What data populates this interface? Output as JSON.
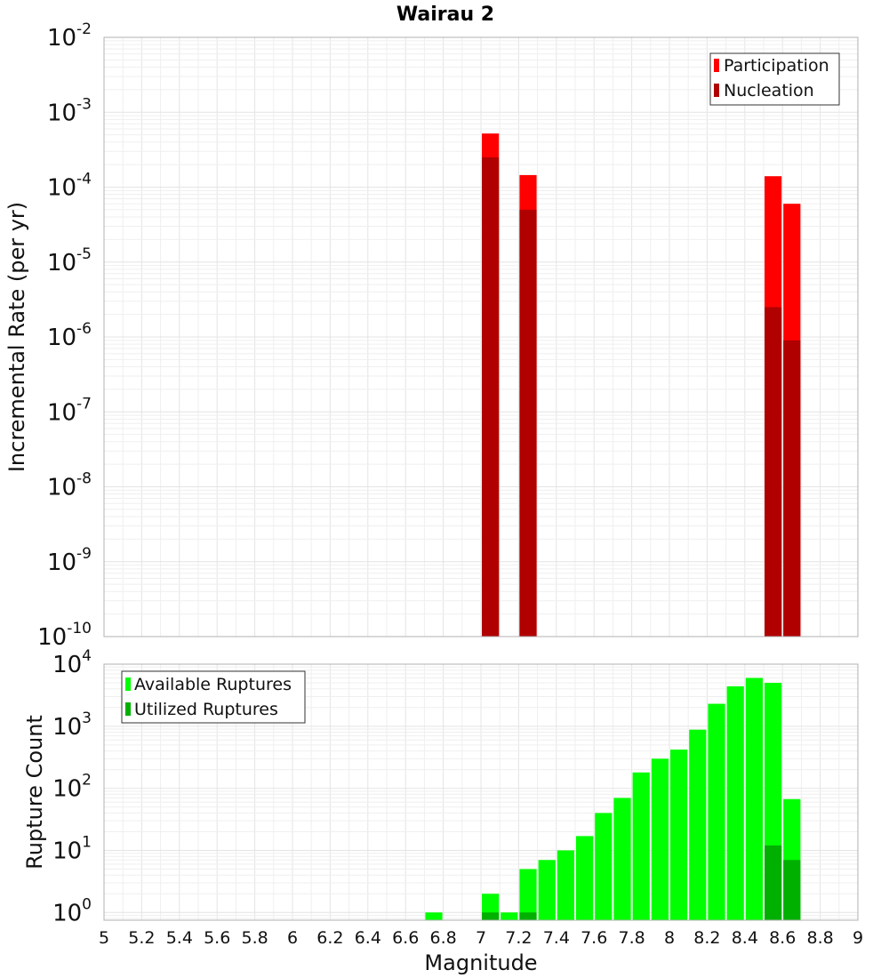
{
  "title": "Wairau 2",
  "chart_data": [
    {
      "type": "bar",
      "ylabel": "Incremental Rate (per yr)",
      "yscale": "log",
      "ylim": [
        1e-10,
        0.01
      ],
      "y_ticks": [
        {
          "base": "10",
          "exp": "-2"
        },
        {
          "base": "10",
          "exp": "-3"
        },
        {
          "base": "10",
          "exp": "-4"
        },
        {
          "base": "10",
          "exp": "-5"
        },
        {
          "base": "10",
          "exp": "-6"
        },
        {
          "base": "10",
          "exp": "-7"
        },
        {
          "base": "10",
          "exp": "-8"
        },
        {
          "base": "10",
          "exp": "-9"
        },
        {
          "base": "10",
          "exp": "-10"
        }
      ],
      "xlim": [
        5,
        9
      ],
      "grid": true,
      "legend_position": "top-right",
      "series": [
        {
          "name": "Participation",
          "color": "#ff0000",
          "points": [
            {
              "x": 7.05,
              "y": 0.00052
            },
            {
              "x": 7.25,
              "y": 0.000145
            },
            {
              "x": 8.55,
              "y": 0.00014
            },
            {
              "x": 8.65,
              "y": 6e-05
            }
          ]
        },
        {
          "name": "Nucleation",
          "color": "#b00000",
          "points": [
            {
              "x": 7.05,
              "y": 0.00025
            },
            {
              "x": 7.25,
              "y": 5e-05
            },
            {
              "x": 8.55,
              "y": 2.5e-06
            },
            {
              "x": 8.65,
              "y": 9e-07
            }
          ]
        }
      ]
    },
    {
      "type": "bar",
      "xlabel": "Magnitude",
      "ylabel": "Rupture Count",
      "yscale": "log",
      "ylim": [
        0.75,
        10000
      ],
      "y_ticks": [
        {
          "base": "10",
          "exp": "4",
          "value": 10000
        },
        {
          "base": "10",
          "exp": "3",
          "value": 1000
        },
        {
          "base": "10",
          "exp": "2",
          "value": 100
        },
        {
          "base": "10",
          "exp": "1",
          "value": 10
        },
        {
          "base": "10",
          "exp": "0",
          "value": 1
        }
      ],
      "xlim": [
        5,
        9
      ],
      "x_ticks": [
        "5",
        "5.2",
        "5.4",
        "5.6",
        "5.8",
        "6",
        "6.2",
        "6.4",
        "6.6",
        "6.8",
        "7",
        "7.2",
        "7.4",
        "7.6",
        "7.8",
        "8",
        "8.2",
        "8.4",
        "8.6",
        "8.8",
        "9"
      ],
      "grid": true,
      "legend_position": "top-left",
      "series": [
        {
          "name": "Available Ruptures",
          "color": "#00ff00",
          "points": [
            {
              "x": 6.75,
              "y": 1
            },
            {
              "x": 7.05,
              "y": 2
            },
            {
              "x": 7.15,
              "y": 1
            },
            {
              "x": 7.25,
              "y": 5
            },
            {
              "x": 7.35,
              "y": 7
            },
            {
              "x": 7.45,
              "y": 10
            },
            {
              "x": 7.55,
              "y": 17
            },
            {
              "x": 7.65,
              "y": 40
            },
            {
              "x": 7.75,
              "y": 70
            },
            {
              "x": 7.85,
              "y": 180
            },
            {
              "x": 7.95,
              "y": 300
            },
            {
              "x": 8.05,
              "y": 420
            },
            {
              "x": 8.15,
              "y": 880
            },
            {
              "x": 8.25,
              "y": 2300
            },
            {
              "x": 8.35,
              "y": 4400
            },
            {
              "x": 8.45,
              "y": 6000
            },
            {
              "x": 8.55,
              "y": 5000
            },
            {
              "x": 8.65,
              "y": 67
            }
          ]
        },
        {
          "name": "Utilized Ruptures",
          "color": "#00b000",
          "points": [
            {
              "x": 7.05,
              "y": 1
            },
            {
              "x": 7.25,
              "y": 1
            },
            {
              "x": 8.55,
              "y": 12
            },
            {
              "x": 8.65,
              "y": 7
            }
          ]
        }
      ]
    }
  ]
}
